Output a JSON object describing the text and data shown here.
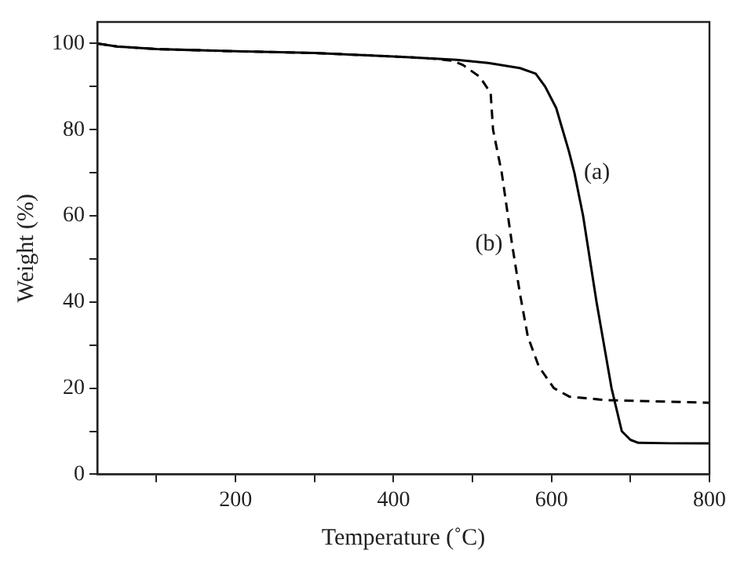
{
  "chart_data": {
    "type": "line",
    "xlabel": "Temperature (˚C)",
    "ylabel": "Weight (%)",
    "xlim": [
      25,
      800
    ],
    "ylim": [
      0,
      105
    ],
    "xticks": [
      {
        "value": 100,
        "label": null
      },
      200,
      {
        "value": 300,
        "label": null
      },
      400,
      {
        "value": 500,
        "label": null
      },
      600,
      {
        "value": 700,
        "label": null
      },
      800
    ],
    "yticks": [
      0,
      {
        "value": 10,
        "label": null
      },
      20,
      {
        "value": 30,
        "label": null
      },
      40,
      {
        "value": 50,
        "label": null
      },
      60,
      {
        "value": 70,
        "label": null
      },
      80,
      {
        "value": 90,
        "label": null
      },
      100
    ],
    "grid": false,
    "legend": false,
    "marker": "none",
    "series": [
      {
        "color": "#000000",
        "line_style": "solid",
        "x": [
          25,
          50,
          100,
          200,
          300,
          400,
          480,
          520,
          560,
          580,
          592,
          606,
          614,
          622,
          629,
          640,
          657,
          676,
          689,
          700,
          710,
          750,
          800
        ],
        "values": [
          100,
          99.3,
          98.7,
          98.2,
          97.8,
          97,
          96.2,
          95.5,
          94.3,
          93,
          90,
          85,
          80,
          75,
          70,
          60,
          40,
          20,
          10,
          8,
          7.3,
          7.2,
          7.2
        ]
      },
      {
        "color": "#000000",
        "line_style": "dashed",
        "x": [
          25,
          50,
          100,
          200,
          300,
          400,
          450,
          475,
          488,
          509,
          523,
          526,
          537,
          550,
          560,
          570,
          584,
          603,
          623,
          670,
          800
        ],
        "values": [
          100,
          99.3,
          98.7,
          98.2,
          97.8,
          97,
          96.5,
          96,
          95,
          92.3,
          88.5,
          80,
          70,
          53.5,
          42,
          32,
          25,
          20,
          18,
          17.2,
          16.6
        ]
      }
    ],
    "annotations": [
      {
        "text": "(a)",
        "x": 629,
        "y": 70
      },
      {
        "text": "(b)",
        "x": 550,
        "y": 53.5
      }
    ]
  }
}
